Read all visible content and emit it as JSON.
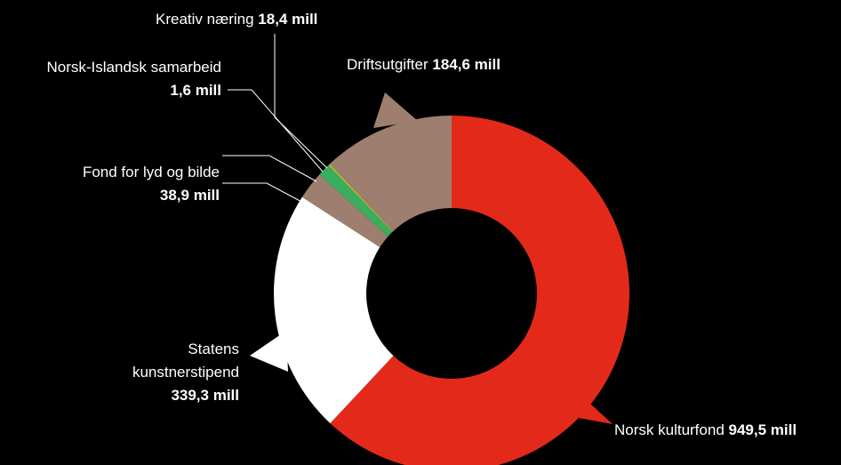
{
  "chart_data": {
    "type": "pie",
    "donut": true,
    "unit": "mill",
    "categories": [
      "Norsk kulturfond",
      "Statens kunstnerstipend",
      "Fond for lyd og bilde",
      "Kreativ næring",
      "Norsk-Islandsk samarbeid",
      "Driftsutgifter"
    ],
    "values": [
      949.5,
      339.3,
      38.9,
      18.4,
      1.6,
      184.6
    ],
    "colors": [
      "#e32a1a",
      "#ffffff",
      "#9e7e6e",
      "#3aae5e",
      "#e8d21e",
      "#9e7e6e"
    ],
    "labels": {
      "kulturfond": {
        "name": "Norsk kulturfond",
        "value": "949,5 mill"
      },
      "kunstnerstipend": {
        "line1": "Statens",
        "line2": "kunstnerstipend",
        "value": "339,3 mill"
      },
      "lyd_bilde": {
        "name": "Fond for lyd og bilde",
        "value": "38,9 mill"
      },
      "islandsk": {
        "name": "Norsk-Islandsk samarbeid",
        "value": "1,6 mill"
      },
      "kreativ": {
        "name": "Kreativ næring",
        "value": "18,4 mill"
      },
      "drift": {
        "name": "Driftsutgifter",
        "value": "184,6  mill"
      }
    }
  }
}
